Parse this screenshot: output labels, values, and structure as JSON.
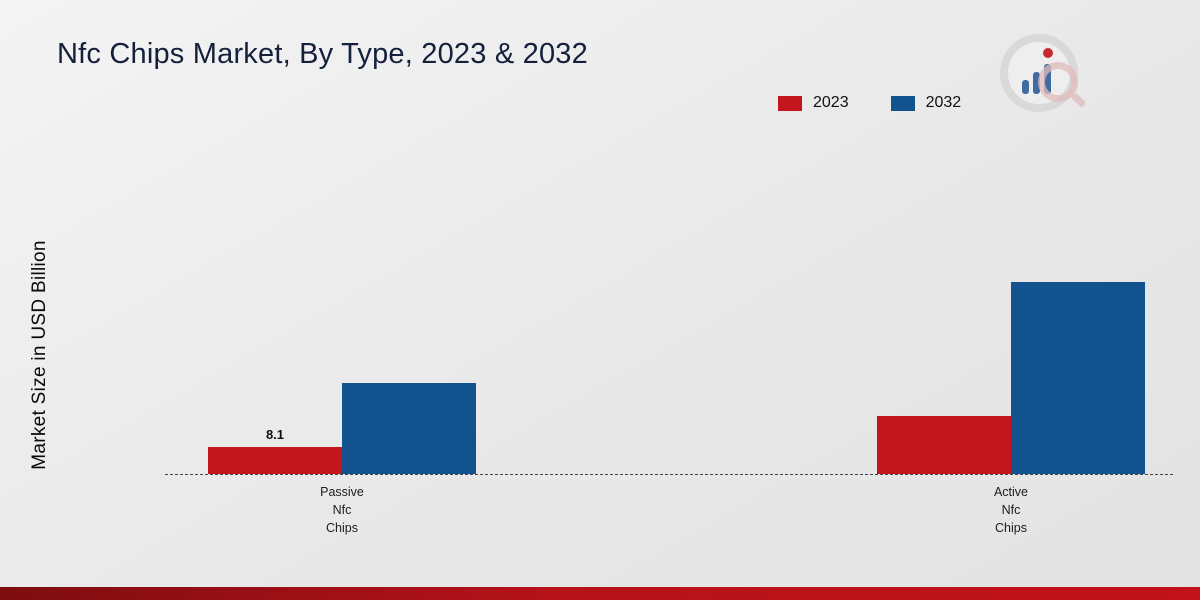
{
  "title": "Nfc Chips Market, By Type, 2023 & 2032",
  "y_axis_label": "Market Size in USD Billion",
  "categories_display": [
    "Passive\nNfc\nChips",
    "Active\nNfc\nChips"
  ],
  "legend": [
    {
      "label": "2023",
      "color": "#c3161c"
    },
    {
      "label": "2032",
      "color": "#12538f"
    }
  ],
  "chart_data": {
    "type": "bar",
    "title": "Nfc Chips Market, By Type, 2023 & 2032",
    "xlabel": "",
    "ylabel": "Market Size in USD Billion",
    "categories": [
      "Passive Nfc Chips",
      "Active Nfc Chips"
    ],
    "series": [
      {
        "name": "2023",
        "color": "#c3161c",
        "values": [
          8.1,
          17.4
        ]
      },
      {
        "name": "2032",
        "color": "#12538f",
        "values": [
          27.2,
          57.6
        ]
      }
    ],
    "ylim": [
      0,
      60
    ],
    "grid": false,
    "baseline_style": "dashed",
    "legend_position": "top-right",
    "bar_label": {
      "series": "2023",
      "category": "Passive Nfc Chips",
      "text": "8.1"
    }
  },
  "branding": {
    "bottom_bar_color_left": "#7e0d10",
    "bottom_bar_color_right": "#c01218"
  }
}
